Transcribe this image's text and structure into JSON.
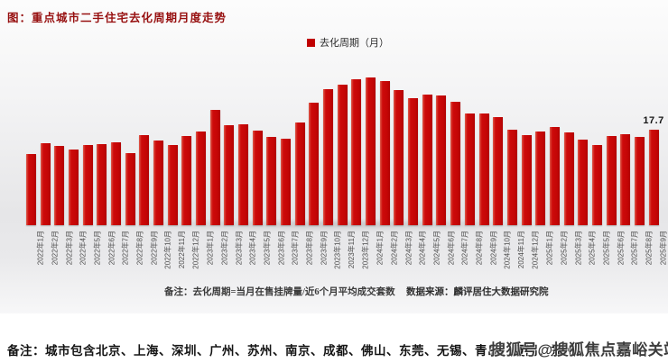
{
  "page": {
    "title": "图：重点城市二手住宅去化周期月度走势",
    "notes": {
      "formula_note": "备注：去化周期=当月在售挂牌量/近6个月平均成交套数",
      "data_source": "数据来源：麟评居住大数据研究院",
      "city_note": "备注：城市包含北京、上海、深圳、广州、苏州、南京、成都、佛山、东莞、无锡、青岛、厦门、郑州。",
      "watermark": "搜狐号@搜狐焦点嘉峪关站"
    },
    "colors": {
      "bar_red": "#c50808",
      "title_red": "#971010",
      "legend_marker_red": "#c00000",
      "axis_label_gray": "#4d4d4d"
    }
  },
  "chart_data": {
    "type": "bar",
    "title": "图：重点城市二手住宅去化周期月度走势",
    "legend": [
      "去化周期（月）"
    ],
    "legend_position": "top-center",
    "grid": false,
    "y_axis_visible": false,
    "unit": "月",
    "ylim": [
      0,
      30
    ],
    "categories": [
      "2022年1月",
      "2022年2月",
      "2022年3月",
      "2022年4月",
      "2022年5月",
      "2022年6月",
      "2022年7月",
      "2022年8月",
      "2022年9月",
      "2022年10月",
      "2022年11月",
      "2022年12月",
      "2023年1月",
      "2023年2月",
      "2023年3月",
      "2023年4月",
      "2023年5月",
      "2023年6月",
      "2023年7月",
      "2023年8月",
      "2023年9月",
      "2023年10月",
      "2023年11月",
      "2023年12月",
      "2024年1月",
      "2024年2月",
      "2024年3月",
      "2024年4月",
      "2024年5月",
      "2024年6月",
      "2024年7月",
      "2024年8月",
      "2024年9月",
      "2024年10月",
      "2024年11月",
      "2024年12月",
      "2025年1月",
      "2025年2月",
      "2025年3月",
      "2025年4月",
      "2025年5月",
      "2025年6月",
      "2025年7月",
      "2025年8月",
      "2025年9月"
    ],
    "values": [
      13.2,
      15.2,
      14.6,
      14.0,
      14.8,
      15.0,
      15.4,
      13.4,
      16.7,
      15.7,
      14.8,
      16.5,
      17.3,
      21.3,
      18.5,
      18.6,
      17.5,
      16.4,
      16.0,
      19.0,
      22.6,
      25.2,
      26.0,
      27.0,
      27.3,
      26.7,
      25.0,
      23.5,
      24.2,
      24.0,
      22.8,
      20.6,
      20.7,
      20.0,
      17.7,
      16.6,
      17.3,
      18.1,
      17.1,
      15.9,
      14.9,
      16.5,
      16.9,
      16.4,
      17.7
    ],
    "data_label": {
      "index": 44,
      "text": "17.7"
    }
  }
}
